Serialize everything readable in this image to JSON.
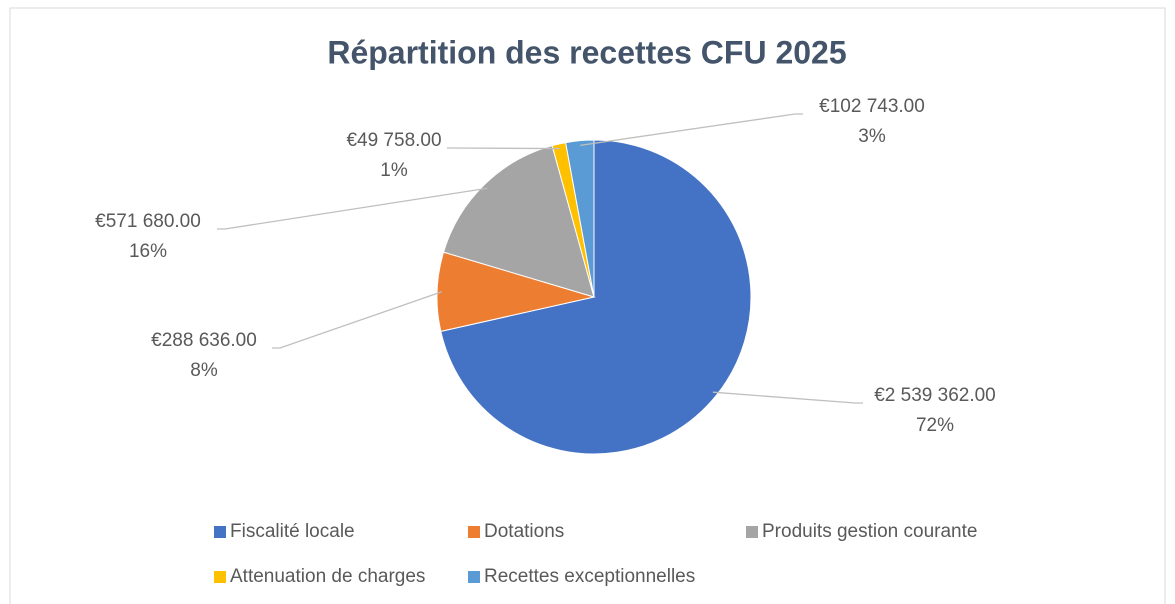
{
  "chart_data": {
    "type": "pie",
    "title": "Répartition des recettes CFU 2025",
    "categories": [
      "Fiscalité locale",
      "Dotations",
      "Produits gestion courante",
      "Attenuation de charges",
      "Recettes exceptionnelles"
    ],
    "values": [
      2539362,
      288636,
      571680,
      49758,
      102743
    ],
    "value_labels": [
      "€2 539 362.00",
      "€288 636.00",
      "€571 680.00",
      "€49 758.00",
      "€102 743.00"
    ],
    "percent_labels": [
      "72%",
      "8%",
      "16%",
      "1%",
      "3%"
    ],
    "colors": [
      "#4472c4",
      "#ed7d31",
      "#a5a5a5",
      "#ffc000",
      "#5b9bd5"
    ],
    "legend": "bottom"
  }
}
